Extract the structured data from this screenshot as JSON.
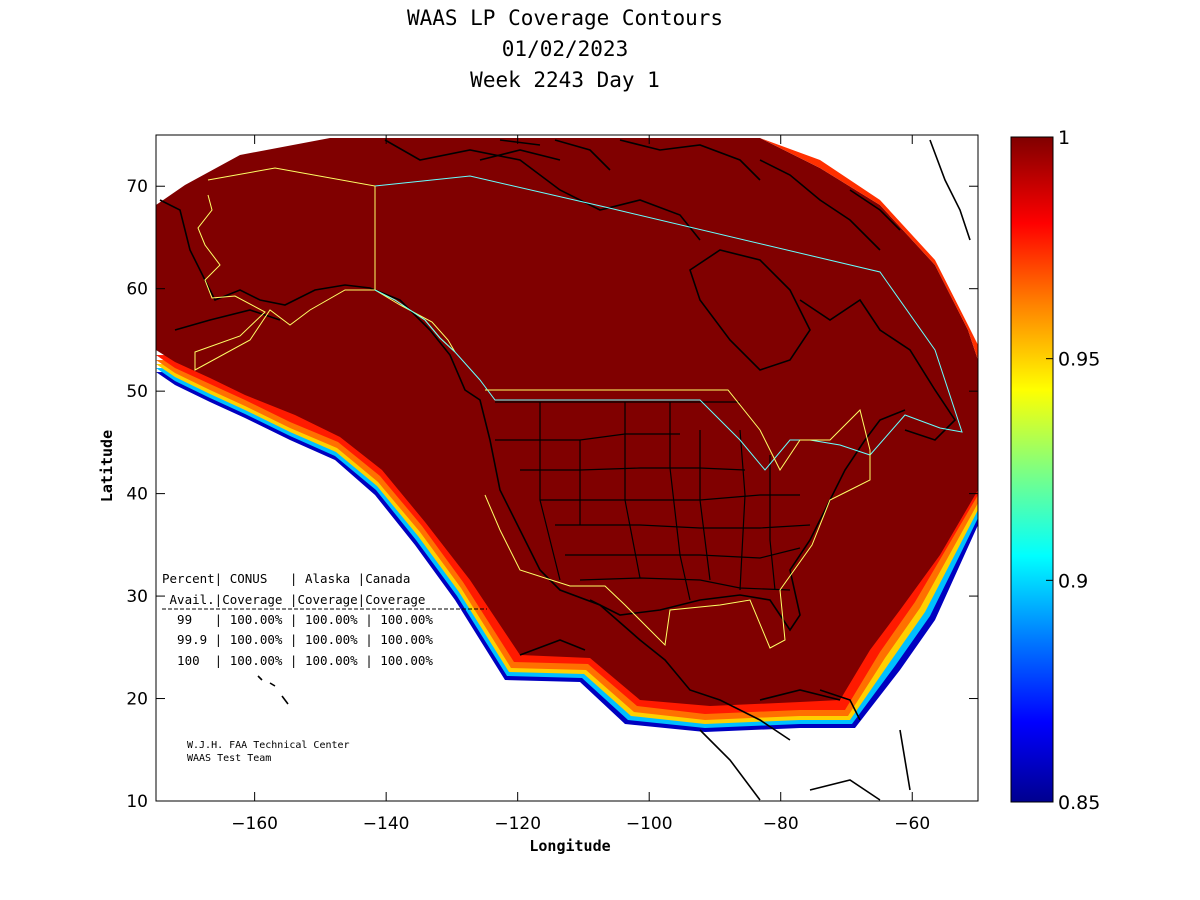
{
  "title": {
    "line1": "WAAS LP Coverage Contours",
    "line2": "01/02/2023",
    "line3": "Week 2243 Day 1"
  },
  "map": {
    "xlabel": "Longitude",
    "ylabel": "Latitude",
    "xlim": [
      -175,
      -50
    ],
    "ylim": [
      10,
      75
    ],
    "xticks": [
      -160,
      -140,
      -120,
      -100,
      -80,
      -60
    ],
    "yticks": [
      10,
      20,
      30,
      40,
      50,
      60,
      70
    ],
    "coverage_color": "#800000"
  },
  "colorbar": {
    "range": [
      0.85,
      1
    ],
    "ticks": [
      "0.85",
      "0.9",
      "0.95",
      "1"
    ],
    "colors": [
      "#00008f",
      "#0000ff",
      "#0080ff",
      "#00ffff",
      "#80ff80",
      "#ffff00",
      "#ff8000",
      "#ff0000",
      "#800000"
    ]
  },
  "table": {
    "header1": "Percent| CONUS   | Alaska |Canada",
    "header2": " Avail.|Coverage |Coverage|Coverage",
    "rows": [
      "  99   | 100.00% | 100.00% | 100.00%",
      "  99.9 | 100.00% | 100.00% | 100.00%",
      "  100  | 100.00% | 100.00% | 100.00%"
    ]
  },
  "credit": {
    "line1": "W.J.H. FAA Technical Center",
    "line2": "WAAS Test Team"
  }
}
